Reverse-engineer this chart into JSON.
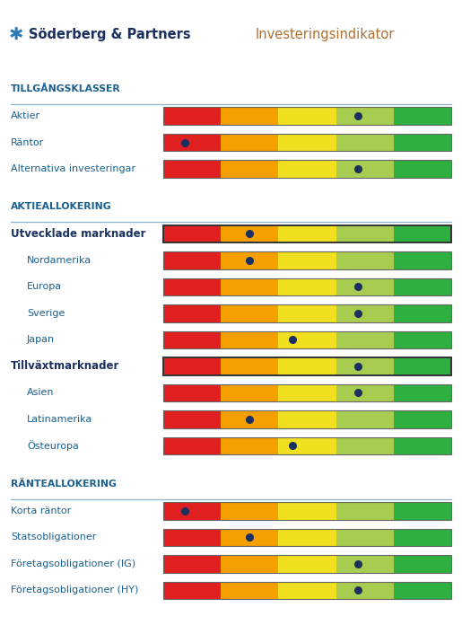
{
  "title_main": "Söderberg & Partners",
  "title_sub": "Investeringsindikator",
  "sections": [
    {
      "header": "TILLGÅNGSKLASSER",
      "rows": [
        {
          "label": "Aktier",
          "dot": 3.7,
          "bold": false,
          "indent": false
        },
        {
          "label": "Räntor",
          "dot": 1.3,
          "bold": false,
          "indent": false
        },
        {
          "label": "Alternativa investeringar",
          "dot": 3.7,
          "bold": false,
          "indent": false
        }
      ]
    },
    {
      "header": "AKTIEALLOKERING",
      "rows": [
        {
          "label": "Utvecklade marknader",
          "dot": 2.2,
          "bold": true,
          "indent": false
        },
        {
          "label": "Nordamerika",
          "dot": 2.2,
          "bold": false,
          "indent": true
        },
        {
          "label": "Europa",
          "dot": 3.7,
          "bold": false,
          "indent": true
        },
        {
          "label": "Sverige",
          "dot": 3.7,
          "bold": false,
          "indent": true
        },
        {
          "label": "Japan",
          "dot": 2.8,
          "bold": false,
          "indent": true
        },
        {
          "label": "Tillväxtmarknader",
          "dot": 3.7,
          "bold": true,
          "indent": false
        },
        {
          "label": "Asien",
          "dot": 3.7,
          "bold": false,
          "indent": true
        },
        {
          "label": "Latinamerika",
          "dot": 2.2,
          "bold": false,
          "indent": true
        },
        {
          "label": "Östeuropa",
          "dot": 2.8,
          "bold": false,
          "indent": true
        }
      ]
    },
    {
      "header": "RÄNTEALLOKERING",
      "rows": [
        {
          "label": "Korta räntor",
          "dot": 1.3,
          "bold": false,
          "indent": false
        },
        {
          "label": "Statsobligationer",
          "dot": 2.2,
          "bold": false,
          "indent": false
        },
        {
          "label": "Företagsobligationer (IG)",
          "dot": 3.7,
          "bold": false,
          "indent": false
        },
        {
          "label": "Företagsobligationer (HY)",
          "dot": 3.7,
          "bold": false,
          "indent": false
        }
      ]
    }
  ],
  "bar_colors": [
    "#e02020",
    "#f5a000",
    "#f0e020",
    "#a8cc50",
    "#2db040"
  ],
  "dot_color": "#1a3060",
  "header_color": "#1a6090",
  "label_color": "#1a6090",
  "bold_label_color": "#1a3060",
  "header_line_color": "#90b8d0",
  "background_color": "#ffffff",
  "logo_color": "#2a7ab5",
  "title_color": "#1a3060",
  "subtitle_color": "#b07030"
}
